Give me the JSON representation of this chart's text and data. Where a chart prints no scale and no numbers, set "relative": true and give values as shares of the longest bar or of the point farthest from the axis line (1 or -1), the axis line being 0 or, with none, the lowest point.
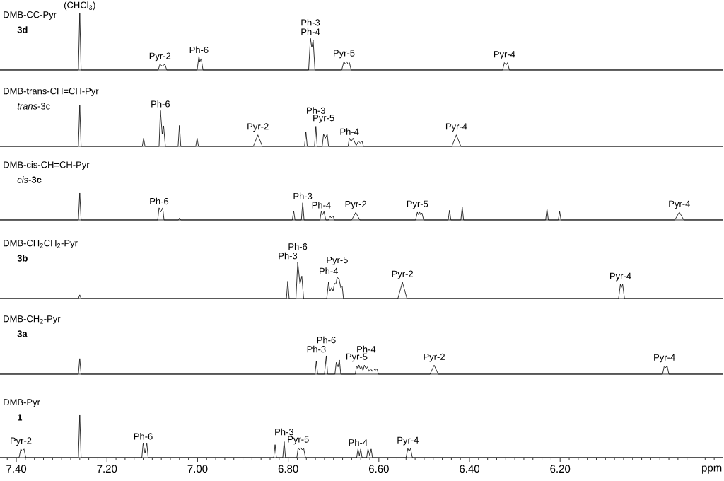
{
  "chart_data": [
    {
      "type": "line",
      "title": "DMB-CC-Pyr",
      "subtitle": "**3d**",
      "relative": true,
      "xlim": [
        7.436,
        5.8415
      ],
      "tick_labels": false,
      "series": [
        {
          "color": "#000000",
          "x": [
            7.436,
            7.263,
            7.26,
            7.257,
            7.087,
            7.083,
            7.078,
            7.072,
            7.068,
            7.001,
            6.997,
            6.995,
            6.992,
            6.988,
            6.755,
            6.751,
            6.748,
            6.745,
            6.741,
            6.682,
            6.677,
            6.674,
            6.671,
            6.668,
            6.665,
            6.661,
            6.327,
            6.323,
            6.319,
            6.316,
            6.312,
            5.842
          ],
          "values": [
            0,
            0,
            1,
            0,
            0,
            0.1,
            0.07,
            0.1,
            0,
            0,
            0.24,
            0.15,
            0.2,
            0,
            0,
            0.56,
            0.4,
            0.53,
            0,
            0,
            0.15,
            0.1,
            0.15,
            0.1,
            0.13,
            0,
            0,
            0.13,
            0.09,
            0.13,
            0,
            0
          ]
        }
      ],
      "annotations": [
        {
          "text": "(CHCl$_{3}$)",
          "x": 7.26,
          "y": 1
        },
        {
          "text": "Pyr-2",
          "x": 7.083,
          "y": 0.1
        },
        {
          "text": "Ph-6",
          "x": 6.997,
          "y": 0.24
        },
        {
          "text": "Ph-3",
          "x": 6.751,
          "y": 0.56
        },
        {
          "text": "Ph-4",
          "x": 6.751,
          "y": 0.56
        },
        {
          "text": "Pyr-5",
          "x": 6.677,
          "y": 0.15
        },
        {
          "text": "Pyr-4",
          "x": 6.323,
          "y": 0.13
        }
      ]
    },
    {
      "type": "line",
      "title": "DMB-trans-CH=CH-Pyr",
      "subtitle": "*trans*-3c",
      "relative": true,
      "xlim": [
        7.436,
        5.8415
      ],
      "tick_labels": false,
      "series": [
        {
          "color": "#000000",
          "x": [
            7.436,
            7.263,
            7.26,
            7.257,
            7.122,
            7.119,
            7.116,
            7.085,
            7.082,
            7.078,
            7.075,
            7.071,
            7.043,
            7.04,
            7.037,
            7.004,
            7.001,
            6.998,
            6.877,
            6.867,
            6.857,
            6.764,
            6.761,
            6.758,
            6.742,
            6.739,
            6.736,
            6.725,
            6.722,
            6.718,
            6.714,
            6.711,
            6.668,
            6.665,
            6.661,
            6.657,
            6.65,
            6.645,
            6.641,
            6.637,
            6.634,
            6.439,
            6.429,
            6.419,
            5.842
          ],
          "values": [
            0,
            0,
            1,
            0,
            0,
            0.2,
            0,
            0,
            0.875,
            0.3,
            0.5,
            0,
            0,
            0.51,
            0,
            0,
            0.2,
            0,
            0,
            0.28,
            0,
            0,
            0.36,
            0,
            0,
            0.49,
            0,
            0,
            0.3,
            0.2,
            0.3,
            0,
            0,
            0.2,
            0.12,
            0.2,
            0.02,
            0.13,
            0.08,
            0.13,
            0,
            0,
            0.28,
            0,
            0
          ]
        }
      ],
      "annotations": [
        {
          "text": "Ph-6",
          "x": 7.082,
          "y": 0.875
        },
        {
          "text": "Pyr-2",
          "x": 6.867,
          "y": 0.28
        },
        {
          "text": "Ph-3",
          "x": 6.739,
          "y": 0.49
        },
        {
          "text": "Pyr-5",
          "x": 6.722,
          "y": 0.3
        },
        {
          "text": "Ph-4",
          "x": 6.665,
          "y": 0.2
        },
        {
          "text": "Pyr-4",
          "x": 6.429,
          "y": 0.28
        }
      ]
    },
    {
      "type": "line",
      "title": "DMB-cis-CH=CH-Pyr",
      "subtitle": "*cis*-**3c**",
      "relative": true,
      "xlim": [
        7.436,
        5.8415
      ],
      "tick_labels": false,
      "series": [
        {
          "color": "#000000",
          "x": [
            7.436,
            7.263,
            7.26,
            7.257,
            7.088,
            7.085,
            7.081,
            7.077,
            7.074,
            7.042,
            7.04,
            7.037,
            6.791,
            6.788,
            6.785,
            6.771,
            6.768,
            6.765,
            6.73,
            6.727,
            6.724,
            6.721,
            6.717,
            6.711,
            6.708,
            6.705,
            6.701,
            6.698,
            6.66,
            6.651,
            6.642,
            6.519,
            6.515,
            6.513,
            6.51,
            6.508,
            6.505,
            6.501,
            6.447,
            6.444,
            6.441,
            6.419,
            6.416,
            6.413,
            6.232,
            6.229,
            6.226,
            6.204,
            6.201,
            6.198,
            5.947,
            5.937,
            5.927,
            5.842
          ],
          "values": [
            0,
            0,
            1,
            0,
            0,
            0.45,
            0.3,
            0.45,
            0,
            0,
            0.07,
            0,
            0,
            0.34,
            0,
            0,
            0.64,
            0,
            0,
            0.31,
            0.2,
            0.31,
            0,
            0,
            0.15,
            0.08,
            0.15,
            0,
            0,
            0.28,
            0,
            0,
            0.29,
            0.2,
            0.29,
            0.2,
            0.26,
            0,
            0,
            0.36,
            0,
            0,
            0.47,
            0,
            0,
            0.41,
            0,
            0,
            0.31,
            0,
            0,
            0.29,
            0,
            0
          ]
        }
      ],
      "annotations": [
        {
          "text": "Ph-6",
          "x": 7.085,
          "y": 0.45
        },
        {
          "text": "Ph-3",
          "x": 6.768,
          "y": 0.64
        },
        {
          "text": "Ph-4",
          "x": 6.727,
          "y": 0.31
        },
        {
          "text": "Pyr-2",
          "x": 6.651,
          "y": 0.28
        },
        {
          "text": "Pyr-5",
          "x": 6.515,
          "y": 0.29
        },
        {
          "text": "Pyr-4",
          "x": 5.937,
          "y": 0.29
        }
      ]
    },
    {
      "type": "line",
      "title": "DMB-CH$_{2}$CH$_{2}$-Pyr",
      "subtitle": "**3b**",
      "relative": true,
      "xlim": [
        7.436,
        5.8415
      ],
      "tick_labels": false,
      "series": [
        {
          "color": "#000000",
          "x": [
            7.436,
            7.263,
            7.26,
            7.257,
            6.804,
            6.801,
            6.798,
            6.783,
            6.779,
            6.774,
            6.77,
            6.766,
            6.715,
            6.711,
            6.708,
            6.704,
            6.701,
            6.698,
            6.695,
            6.692,
            6.688,
            6.684,
            6.681,
            6.678,
            6.558,
            6.548,
            6.538,
            6.071,
            6.067,
            6.065,
            6.062,
            6.058,
            5.842
          ],
          "values": [
            0,
            0,
            0.1,
            0,
            0,
            0.48,
            0,
            0,
            1,
            0.4,
            0.62,
            0,
            0,
            0.45,
            0.2,
            0.3,
            0.2,
            0.42,
            0.4,
            0.58,
            0.55,
            0.3,
            0.35,
            0,
            0,
            0.45,
            0,
            0,
            0.39,
            0.3,
            0.39,
            0,
            0
          ]
        }
      ],
      "annotations": [
        {
          "text": "Ph-6",
          "x": 6.779,
          "y": 1
        },
        {
          "text": "Ph-3",
          "x": 6.801,
          "y": 0.48
        },
        {
          "text": "Pyr-5",
          "x": 6.692,
          "y": 0.58
        },
        {
          "text": "Ph-4",
          "x": 6.711,
          "y": 0.45
        },
        {
          "text": "Pyr-2",
          "x": 6.548,
          "y": 0.45
        },
        {
          "text": "Pyr-4",
          "x": 6.067,
          "y": 0.39
        }
      ]
    },
    {
      "type": "line",
      "title": "DMB-CH$_{2}$-Pyr",
      "subtitle": "**3a**",
      "relative": true,
      "xlim": [
        7.436,
        5.8415
      ],
      "tick_labels": false,
      "series": [
        {
          "color": "#000000",
          "x": [
            7.436,
            7.263,
            7.26,
            7.257,
            6.741,
            6.738,
            6.735,
            6.72,
            6.716,
            6.713,
            6.697,
            6.694,
            6.69,
            6.687,
            6.684,
            6.652,
            6.649,
            6.646,
            6.644,
            6.641,
            6.638,
            6.635,
            6.632,
            6.628,
            6.625,
            6.622,
            6.618,
            6.615,
            6.612,
            6.608,
            6.604,
            6.601,
            6.487,
            6.478,
            6.469,
            5.974,
            5.97,
            5.967,
            5.964,
            5.96,
            5.842
          ],
          "values": [
            0,
            0,
            0.85,
            0,
            0,
            0.72,
            0,
            0,
            1,
            0,
            0,
            0.64,
            0.4,
            0.77,
            0,
            0,
            0.46,
            0.3,
            0.5,
            0.3,
            0.4,
            0.2,
            0.49,
            0.3,
            0.4,
            0.15,
            0.3,
            0.15,
            0.3,
            0.2,
            0.3,
            0,
            0,
            0.49,
            0,
            0,
            0.46,
            0.35,
            0.46,
            0,
            0
          ]
        }
      ],
      "annotations": [
        {
          "text": "Ph-6",
          "x": 6.716,
          "y": 1
        },
        {
          "text": "Ph-4",
          "x": 6.628,
          "y": 0.49
        },
        {
          "text": "Ph-3",
          "x": 6.738,
          "y": 0.72
        },
        {
          "text": "Pyr-5",
          "x": 6.649,
          "y": 0.46
        },
        {
          "text": "Pyr-2",
          "x": 6.478,
          "y": 0.49
        },
        {
          "text": "Pyr-4",
          "x": 5.97,
          "y": 0.46
        }
      ]
    },
    {
      "type": "line",
      "title": "DMB-Pyr",
      "subtitle": "**1**",
      "relative": true,
      "xlim": [
        7.436,
        5.8415
      ],
      "tick_labels": "x",
      "xlabel": "ppm",
      "xticks": [
        {
          "value": 7.42,
          "label": null
        },
        {
          "value": 7.4,
          "label": "7.40"
        },
        {
          "value": 7.38,
          "label": null
        },
        {
          "value": 7.36,
          "label": null
        },
        {
          "value": 7.34,
          "label": null
        },
        {
          "value": 7.32,
          "label": null
        },
        {
          "value": 7.3,
          "label": null
        },
        {
          "value": 7.28,
          "label": null
        },
        {
          "value": 7.26,
          "label": null
        },
        {
          "value": 7.24,
          "label": null
        },
        {
          "value": 7.22,
          "label": null
        },
        {
          "value": 7.2,
          "label": "7.20"
        },
        {
          "value": 7.18,
          "label": null
        },
        {
          "value": 7.16,
          "label": null
        },
        {
          "value": 7.14,
          "label": null
        },
        {
          "value": 7.12,
          "label": null
        },
        {
          "value": 7.1,
          "label": null
        },
        {
          "value": 7.08,
          "label": null
        },
        {
          "value": 7.06,
          "label": null
        },
        {
          "value": 7.04,
          "label": null
        },
        {
          "value": 7.02,
          "label": null
        },
        {
          "value": 7.0,
          "label": "7.00"
        },
        {
          "value": 6.98,
          "label": null
        },
        {
          "value": 6.96,
          "label": null
        },
        {
          "value": 6.94,
          "label": null
        },
        {
          "value": 6.92,
          "label": null
        },
        {
          "value": 6.9,
          "label": null
        },
        {
          "value": 6.88,
          "label": null
        },
        {
          "value": 6.86,
          "label": null
        },
        {
          "value": 6.84,
          "label": null
        },
        {
          "value": 6.82,
          "label": null
        },
        {
          "value": 6.8,
          "label": "6.80"
        },
        {
          "value": 6.78,
          "label": null
        },
        {
          "value": 6.76,
          "label": null
        },
        {
          "value": 6.74,
          "label": null
        },
        {
          "value": 6.72,
          "label": null
        },
        {
          "value": 6.7,
          "label": null
        },
        {
          "value": 6.68,
          "label": null
        },
        {
          "value": 6.66,
          "label": null
        },
        {
          "value": 6.64,
          "label": null
        },
        {
          "value": 6.62,
          "label": null
        },
        {
          "value": 6.6,
          "label": "6.60"
        },
        {
          "value": 6.58,
          "label": null
        },
        {
          "value": 6.56,
          "label": null
        },
        {
          "value": 6.54,
          "label": null
        },
        {
          "value": 6.52,
          "label": null
        },
        {
          "value": 6.5,
          "label": null
        },
        {
          "value": 6.48,
          "label": null
        },
        {
          "value": 6.46,
          "label": null
        },
        {
          "value": 6.44,
          "label": null
        },
        {
          "value": 6.42,
          "label": null
        },
        {
          "value": 6.4,
          "label": "6.40"
        },
        {
          "value": 6.38,
          "label": null
        },
        {
          "value": 6.36,
          "label": null
        },
        {
          "value": 6.34,
          "label": null
        },
        {
          "value": 6.32,
          "label": null
        },
        {
          "value": 6.3,
          "label": null
        },
        {
          "value": 6.28,
          "label": null
        },
        {
          "value": 6.26,
          "label": null
        },
        {
          "value": 6.24,
          "label": null
        },
        {
          "value": 6.22,
          "label": null
        },
        {
          "value": 6.2,
          "label": "6.20"
        },
        {
          "value": 6.18,
          "label": null
        },
        {
          "value": 6.16,
          "label": null
        },
        {
          "value": 6.14,
          "label": null
        },
        {
          "value": 6.12,
          "label": null
        },
        {
          "value": 6.1,
          "label": null
        },
        {
          "value": 6.08,
          "label": null
        },
        {
          "value": 6.06,
          "label": null
        },
        {
          "value": 6.04,
          "label": null
        },
        {
          "value": 6.02,
          "label": null
        },
        {
          "value": 6.0,
          "label": null
        },
        {
          "value": 5.98,
          "label": null
        },
        {
          "value": 5.96,
          "label": null
        },
        {
          "value": 5.94,
          "label": null
        },
        {
          "value": 5.92,
          "label": null
        },
        {
          "value": 5.9,
          "label": null
        },
        {
          "value": 5.88,
          "label": null
        },
        {
          "value": 5.86,
          "label": null
        }
      ],
      "series": [
        {
          "color": "#000000",
          "x": [
            7.436,
            7.394,
            7.39,
            7.387,
            7.383,
            7.379,
            7.263,
            7.26,
            7.257,
            7.123,
            7.12,
            7.116,
            7.112,
            7.109,
            6.832,
            6.829,
            6.826,
            6.812,
            6.809,
            6.806,
            6.781,
            6.778,
            6.775,
            6.772,
            6.769,
            6.766,
            6.762,
            6.649,
            6.646,
            6.643,
            6.64,
            6.637,
            6.627,
            6.624,
            6.62,
            6.617,
            6.614,
            6.54,
            6.536,
            6.533,
            6.53,
            6.526,
            5.842
          ],
          "values": [
            0,
            0,
            0.2,
            0.15,
            0.2,
            0,
            0,
            1,
            0,
            0,
            0.34,
            0.1,
            0.34,
            0,
            0,
            0.3,
            0,
            0,
            0.37,
            0,
            0,
            0.23,
            0.18,
            0.23,
            0.18,
            0.22,
            0,
            0,
            0.2,
            0.05,
            0.2,
            0,
            0,
            0.2,
            0.05,
            0.2,
            0,
            0,
            0.21,
            0.15,
            0.21,
            0,
            0
          ]
        }
      ],
      "annotations": [
        {
          "text": "Pyr-2",
          "x": 7.39,
          "y": 0.2
        },
        {
          "text": "Ph-6",
          "x": 7.12,
          "y": 0.34
        },
        {
          "text": "Ph-3",
          "x": 6.809,
          "y": 0.37
        },
        {
          "text": "Pyr-5",
          "x": 6.778,
          "y": 0.23
        },
        {
          "text": "Ph-4",
          "x": 6.646,
          "y": 0.2
        },
        {
          "text": "Pyr-4",
          "x": 6.536,
          "y": 0.21
        }
      ]
    }
  ]
}
